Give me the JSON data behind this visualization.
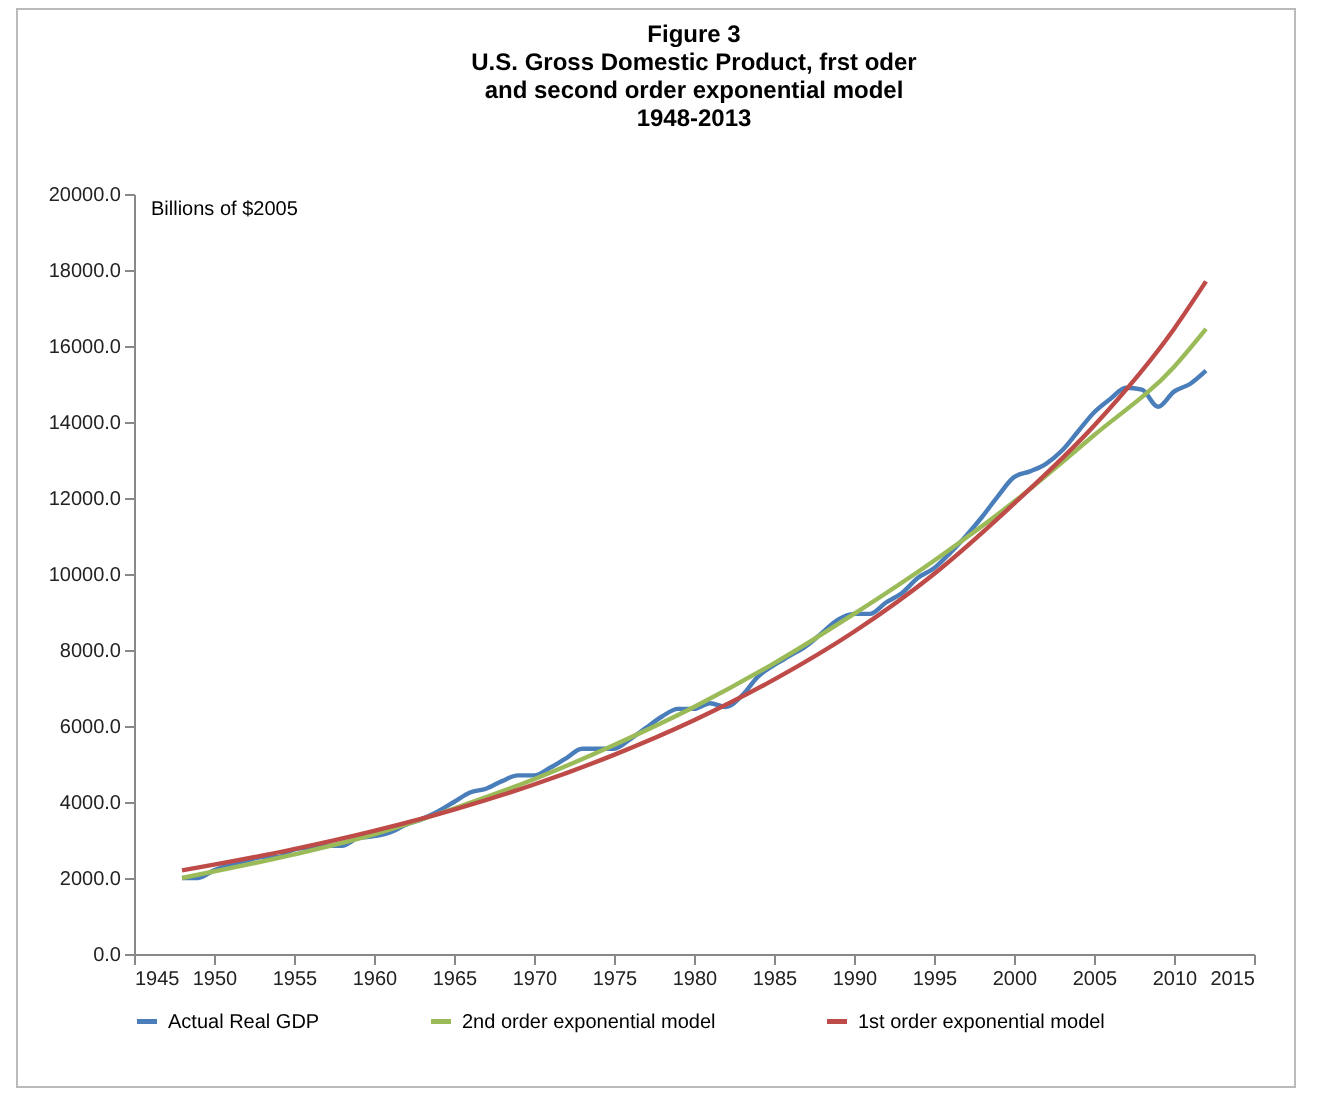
{
  "chart_data": {
    "type": "line",
    "title": "Figure 3\nU.S. Gross Domestic Product, frst oder\nand second order exponential model\n1948-2013",
    "ylabel": "Billions of $2005",
    "xlim": [
      1945,
      2015
    ],
    "xticks": [
      1945,
      1950,
      1955,
      1960,
      1965,
      1970,
      1975,
      1980,
      1985,
      1990,
      1995,
      2000,
      2005,
      2010,
      2015
    ],
    "ylim": [
      0,
      20000
    ],
    "yticks": [
      {
        "value": 0,
        "label": "0.0"
      },
      {
        "value": 2000,
        "label": "2000.0"
      },
      {
        "value": 4000,
        "label": "4000.0"
      },
      {
        "value": 6000,
        "label": "6000.0"
      },
      {
        "value": 8000,
        "label": "8000.0"
      },
      {
        "value": 10000,
        "label": "10000.0"
      },
      {
        "value": 12000,
        "label": "12000.0"
      },
      {
        "value": 14000,
        "label": "14000.0"
      },
      {
        "value": 16000,
        "label": "16000.0"
      },
      {
        "value": 18000,
        "label": "18000.0"
      },
      {
        "value": 20000,
        "label": "20000.0"
      }
    ],
    "grid": false,
    "legend": "bottom",
    "series": [
      {
        "name": "Actual Real GDP",
        "color": "#4a7ebb",
        "x": [
          1948,
          1949,
          1950,
          1951,
          1952,
          1953,
          1954,
          1955,
          1956,
          1957,
          1958,
          1959,
          1960,
          1961,
          1962,
          1963,
          1964,
          1965,
          1966,
          1967,
          1968,
          1969,
          1970,
          1971,
          1972,
          1973,
          1974,
          1975,
          1976,
          1977,
          1978,
          1979,
          1980,
          1981,
          1982,
          1983,
          1984,
          1985,
          1986,
          1987,
          1988,
          1989,
          1990,
          1991,
          1992,
          1993,
          1994,
          1995,
          1996,
          1997,
          1998,
          1999,
          2000,
          2001,
          2002,
          2003,
          2004,
          2005,
          2006,
          2007,
          2008,
          2009,
          2010,
          2011,
          2012
        ],
        "values": [
          2000,
          2000,
          2200,
          2350,
          2450,
          2550,
          2550,
          2750,
          2800,
          2850,
          2850,
          3050,
          3100,
          3200,
          3400,
          3550,
          3750,
          4000,
          4250,
          4350,
          4550,
          4700,
          4700,
          4900,
          5150,
          5400,
          5400,
          5400,
          5650,
          5950,
          6250,
          6450,
          6450,
          6600,
          6500,
          6800,
          7300,
          7600,
          7850,
          8100,
          8450,
          8800,
          8950,
          8950,
          9250,
          9500,
          9900,
          10150,
          10550,
          11000,
          11500,
          12050,
          12550,
          12700,
          12900,
          13250,
          13750,
          14250,
          14600,
          14900,
          14850,
          14400,
          14800,
          15000,
          15350
        ]
      },
      {
        "name": "2nd order exponential model",
        "color": "#9bbb59",
        "x": [
          1948,
          1955,
          1960,
          1965,
          1970,
          1975,
          1980,
          1985,
          1990,
          1995,
          2000,
          2005,
          2010,
          2012
        ],
        "values": [
          2000,
          2620,
          3150,
          3830,
          4600,
          5500,
          6500,
          7650,
          8950,
          10350,
          11900,
          13650,
          15450,
          16450
        ]
      },
      {
        "name": "1st order exponential model",
        "color": "#be4b48",
        "x": [
          1948,
          1950,
          1955,
          1960,
          1965,
          1970,
          1975,
          1980,
          1985,
          1990,
          1995,
          2000,
          2005,
          2010,
          2012
        ],
        "values": [
          2200,
          2350,
          2760,
          3240,
          3800,
          4460,
          5240,
          6150,
          7220,
          8480,
          10000,
          11850,
          13900,
          16450,
          17700
        ]
      }
    ]
  }
}
